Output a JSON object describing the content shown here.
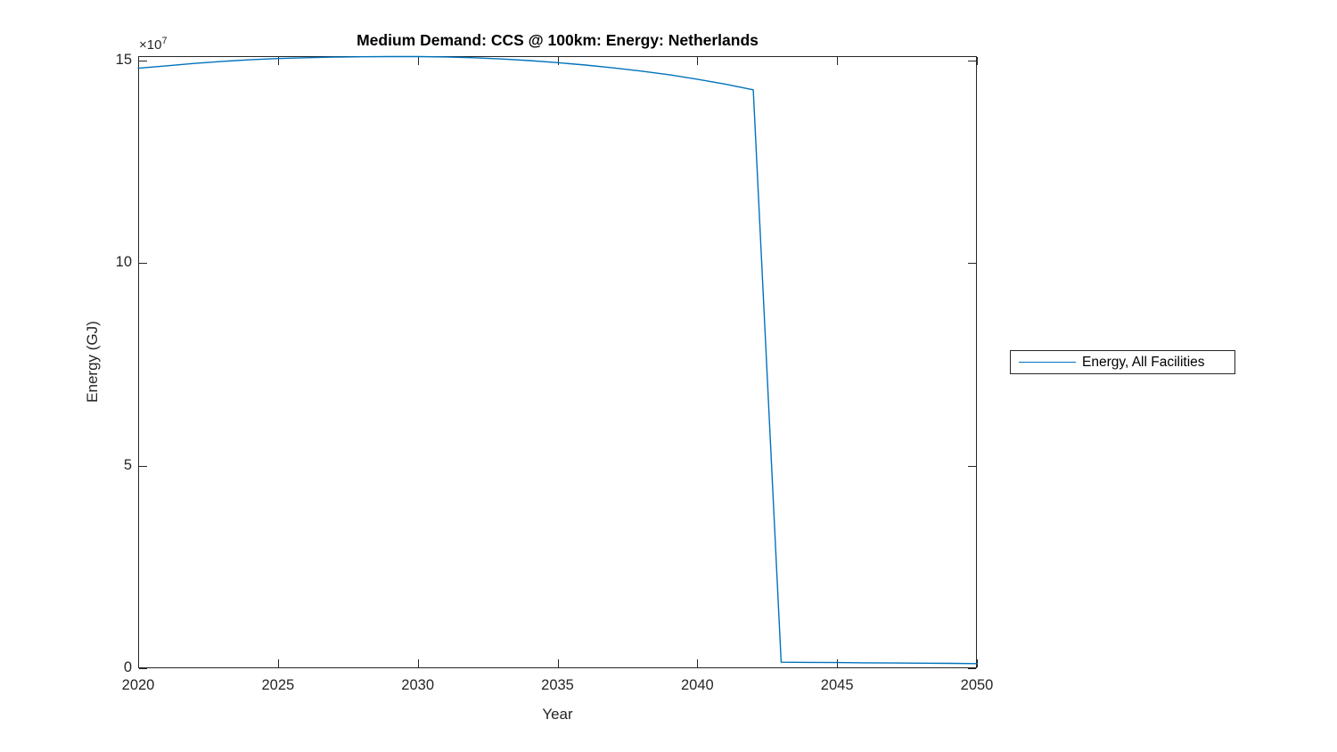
{
  "title": "Medium Demand: CCS @ 100km: Energy: Netherlands",
  "axes": {
    "xlabel": "Year",
    "ylabel": "Energy (GJ)",
    "y_multiplier_base": "×10",
    "y_multiplier_exp": "7"
  },
  "legend": {
    "entries": [
      {
        "label": "Energy, All Facilities",
        "color": "#0072BD"
      }
    ]
  },
  "colors": {
    "line": "#0072BD",
    "axis": "#262626",
    "tick_text": "#262626",
    "background": "#ffffff"
  },
  "chart_data": {
    "type": "line",
    "title": "Medium Demand: CCS @ 100km: Energy: Netherlands",
    "xlabel": "Year",
    "ylabel": "Energy (GJ)",
    "xlim": [
      2020,
      2050
    ],
    "ylim": [
      0,
      151000000
    ],
    "xticks": [
      2020,
      2025,
      2030,
      2035,
      2040,
      2045,
      2050
    ],
    "yticks": [
      0,
      50000000,
      100000000,
      150000000
    ],
    "ytick_labels": [
      "0",
      "5",
      "10",
      "15"
    ],
    "ytick_exponent_note": "y tick labels are in units of 1e7 GJ (×10^7 shown above axis)",
    "grid": false,
    "box": true,
    "tick_direction": "in",
    "legend_position": "outside-right",
    "series": [
      {
        "name": "Energy, All Facilities",
        "color": "#0072BD",
        "x": [
          2020,
          2021,
          2022,
          2023,
          2024,
          2025,
          2026,
          2027,
          2028,
          2029,
          2030,
          2031,
          2032,
          2033,
          2034,
          2035,
          2036,
          2037,
          2038,
          2039,
          2040,
          2041,
          2042,
          2043,
          2044,
          2045,
          2046,
          2047,
          2048,
          2049,
          2050
        ],
        "y": [
          148000000,
          148600000,
          149200000,
          149700000,
          150100000,
          150400000,
          150600000,
          150750000,
          150850000,
          150900000,
          150900000,
          150800000,
          150600000,
          150300000,
          149900000,
          149400000,
          148800000,
          148100000,
          147300000,
          146400000,
          145300000,
          144100000,
          142700000,
          1500000,
          1450000,
          1400000,
          1350000,
          1300000,
          1250000,
          1200000,
          1150000
        ]
      }
    ]
  }
}
